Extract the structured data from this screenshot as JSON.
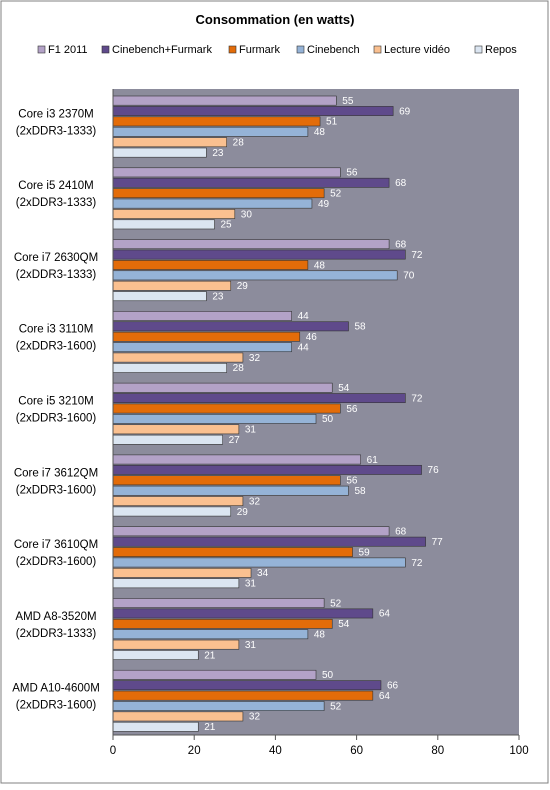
{
  "chart_data": {
    "type": "bar",
    "orientation": "horizontal",
    "title": "Consommation (en watts)",
    "xlabel": "",
    "ylabel": "",
    "xlim": [
      0,
      100
    ],
    "xticks": [
      0,
      20,
      40,
      60,
      80,
      100
    ],
    "grid": false,
    "legend_position": "top",
    "plot_background": "#8c8c9c",
    "categories": [
      [
        "Core i3 2370M",
        "(2xDDR3-1333)"
      ],
      [
        "Core i5 2410M",
        "(2xDDR3-1333)"
      ],
      [
        "Core i7 2630QM",
        "(2xDDR3-1333)"
      ],
      [
        "Core i3 3110M",
        "(2xDDR3-1600)"
      ],
      [
        "Core i5 3210M",
        "(2xDDR3-1600)"
      ],
      [
        "Core i7 3612QM",
        "(2xDDR3-1600)"
      ],
      [
        "Core i7 3610QM",
        "(2xDDR3-1600)"
      ],
      [
        "AMD A8-3520M",
        "(2xDDR3-1333)"
      ],
      [
        "AMD A10-4600M",
        "(2xDDR3-1600)"
      ]
    ],
    "series": [
      {
        "name": "F1 2011",
        "color": "#b3a2c7",
        "values": [
          55,
          56,
          68,
          44,
          54,
          61,
          68,
          52,
          50
        ]
      },
      {
        "name": "Cinebench+Furmark",
        "color": "#5f4a8b",
        "values": [
          69,
          68,
          72,
          58,
          72,
          76,
          77,
          64,
          66
        ]
      },
      {
        "name": "Furmark",
        "color": "#e36c09",
        "values": [
          51,
          52,
          48,
          46,
          56,
          56,
          59,
          54,
          64
        ]
      },
      {
        "name": "Cinebench",
        "color": "#95b3d7",
        "values": [
          48,
          49,
          70,
          44,
          50,
          58,
          72,
          48,
          52
        ]
      },
      {
        "name": "Lecture vidéo",
        "color": "#fac090",
        "values": [
          28,
          30,
          29,
          32,
          31,
          32,
          34,
          31,
          32
        ]
      },
      {
        "name": "Repos",
        "color": "#dbe5f1",
        "values": [
          23,
          25,
          23,
          28,
          27,
          29,
          31,
          21,
          21
        ]
      }
    ]
  }
}
